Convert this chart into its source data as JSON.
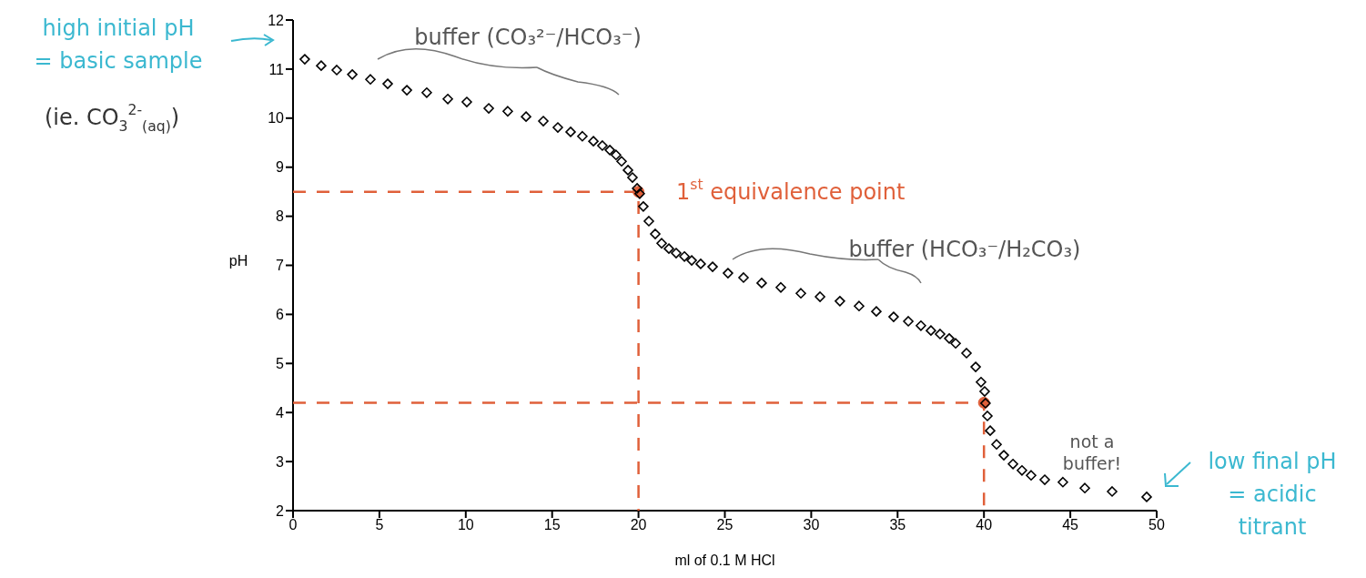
{
  "chart_data": {
    "type": "scatter",
    "xlabel": "ml of 0.1 M HCl",
    "ylabel": "pH",
    "xlim": [
      0,
      50
    ],
    "ylim": [
      2,
      12
    ],
    "xticks": [
      0,
      5,
      10,
      15,
      20,
      25,
      30,
      35,
      40,
      45,
      50
    ],
    "yticks": [
      2,
      3,
      4,
      5,
      6,
      7,
      8,
      9,
      10,
      11,
      12
    ],
    "series": [
      {
        "type": "scatter",
        "color": "#000000",
        "marker": "diamond",
        "x": [
          0.68,
          1.63,
          2.53,
          3.43,
          4.48,
          5.48,
          6.59,
          7.74,
          8.96,
          10.06,
          11.33,
          12.43,
          13.49,
          14.49,
          15.33,
          16.07,
          16.75,
          17.39,
          17.91,
          18.34,
          18.7,
          19.02,
          19.39,
          19.65,
          19.92,
          20.07,
          20.28,
          20.6,
          20.97,
          21.34,
          21.76,
          22.18,
          22.66,
          23.08,
          23.6,
          24.29,
          25.18,
          26.08,
          27.13,
          28.24,
          29.4,
          30.51,
          31.66,
          32.77,
          33.77,
          34.77,
          35.62,
          36.35,
          36.93,
          37.46,
          37.99,
          38.36,
          38.99,
          39.52,
          39.83,
          40.04,
          40.09,
          40.2,
          40.36,
          40.73,
          41.15,
          41.68,
          42.2,
          42.73,
          43.52,
          44.57,
          45.84,
          47.42,
          49.42
        ],
        "values": [
          11.2,
          11.07,
          10.98,
          10.89,
          10.79,
          10.7,
          10.57,
          10.52,
          10.39,
          10.33,
          10.2,
          10.14,
          10.03,
          9.94,
          9.81,
          9.72,
          9.63,
          9.53,
          9.44,
          9.35,
          9.25,
          9.12,
          8.94,
          8.79,
          8.57,
          8.46,
          8.2,
          7.9,
          7.64,
          7.45,
          7.34,
          7.25,
          7.18,
          7.1,
          7.03,
          6.97,
          6.84,
          6.75,
          6.64,
          6.55,
          6.43,
          6.36,
          6.27,
          6.17,
          6.06,
          5.95,
          5.86,
          5.77,
          5.67,
          5.6,
          5.51,
          5.41,
          5.21,
          4.93,
          4.62,
          4.43,
          4.19,
          3.93,
          3.63,
          3.35,
          3.13,
          2.95,
          2.82,
          2.72,
          2.63,
          2.58,
          2.46,
          2.39,
          2.28
        ]
      },
      {
        "type": "line",
        "color": "#e0603a",
        "line_style": "dashed",
        "marker": "none",
        "x": [
          0,
          20,
          20
        ],
        "values": [
          8.5,
          8.5,
          2
        ]
      },
      {
        "type": "line",
        "color": "#e0603a",
        "line_style": "dashed",
        "marker": "none",
        "x": [
          0,
          40,
          40
        ],
        "values": [
          4.2,
          4.2,
          2
        ]
      },
      {
        "type": "scatter",
        "color": "#e0603a",
        "marker": "circle",
        "x": [
          20,
          40
        ],
        "values": [
          8.5,
          4.2
        ]
      }
    ],
    "annotations": [
      "buffer (CO₃²⁻/HCO₃⁻)",
      "1$^{st}$ equivalence point",
      "buffer (HCO₃⁻/H₂CO₃)",
      "not a buffer!",
      "high initial pH = basic sample",
      "(ie. CO$_{3}$$^{2-}$$_{(aq)}$)",
      "low final pH = acidic titrant"
    ]
  }
}
